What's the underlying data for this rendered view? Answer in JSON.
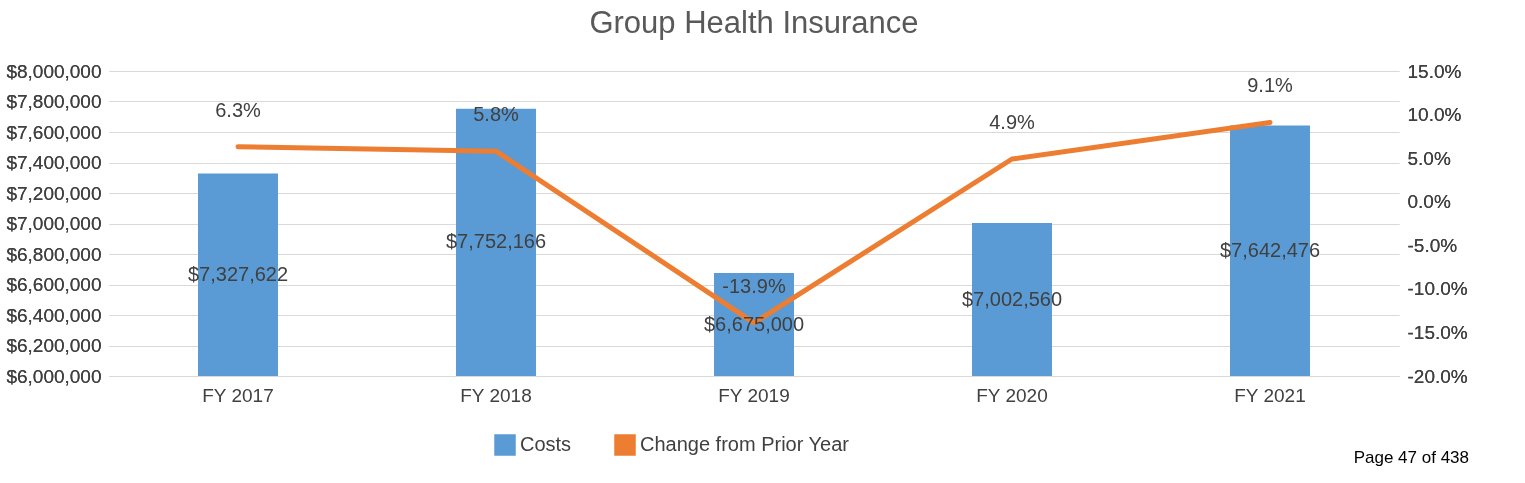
{
  "chart_data": {
    "type": "bar",
    "title": "Group Health Insurance",
    "categories": [
      "FY 2017",
      "FY 2018",
      "FY 2019",
      "FY 2020",
      "FY 2021"
    ],
    "series": [
      {
        "name": "Costs",
        "color": "#5b9bd5",
        "values": [
          7327622,
          7752166,
          6675000,
          7002560,
          7642476
        ],
        "value_labels": [
          "$7,327,622",
          "$7,752,166",
          "$6,675,000",
          "$7,002,560",
          "$7,642,476"
        ]
      },
      {
        "name": "Change from Prior Year",
        "type": "line",
        "axis": "y2",
        "color": "#ed7d31",
        "values": [
          6.3,
          5.8,
          -13.9,
          4.9,
          9.1
        ],
        "value_labels": [
          "6.3%",
          "5.8%",
          "-13.9%",
          "4.9%",
          "9.1%"
        ]
      }
    ],
    "ylim": [
      6000000,
      8000000
    ],
    "yticks": [
      {
        "value": 6000000,
        "label": "$6,000,000"
      },
      {
        "value": 6200000,
        "label": "$6,200,000"
      },
      {
        "value": 6400000,
        "label": "$6,400,000"
      },
      {
        "value": 6600000,
        "label": "$6,600,000"
      },
      {
        "value": 6800000,
        "label": "$6,800,000"
      },
      {
        "value": 7000000,
        "label": "$7,000,000"
      },
      {
        "value": 7200000,
        "label": "$7,200,000"
      },
      {
        "value": 7400000,
        "label": "$7,400,000"
      },
      {
        "value": 7600000,
        "label": "$7,600,000"
      },
      {
        "value": 7800000,
        "label": "$7,800,000"
      },
      {
        "value": 8000000,
        "label": "$8,000,000"
      }
    ],
    "y2lim": [
      -20,
      15
    ],
    "y2ticks": [
      {
        "value": -20,
        "label": "-20.0%"
      },
      {
        "value": -15,
        "label": "-15.0%"
      },
      {
        "value": -10,
        "label": "-10.0%"
      },
      {
        "value": -5,
        "label": "-5.0%"
      },
      {
        "value": 0,
        "label": "0.0%"
      },
      {
        "value": 5,
        "label": "5.0%"
      },
      {
        "value": 10,
        "label": "10.0%"
      },
      {
        "value": 15,
        "label": "15.0%"
      }
    ],
    "grid": "y",
    "legend": "bottom",
    "data_labels": true,
    "annotations": [
      "Page 47 of 438"
    ]
  }
}
